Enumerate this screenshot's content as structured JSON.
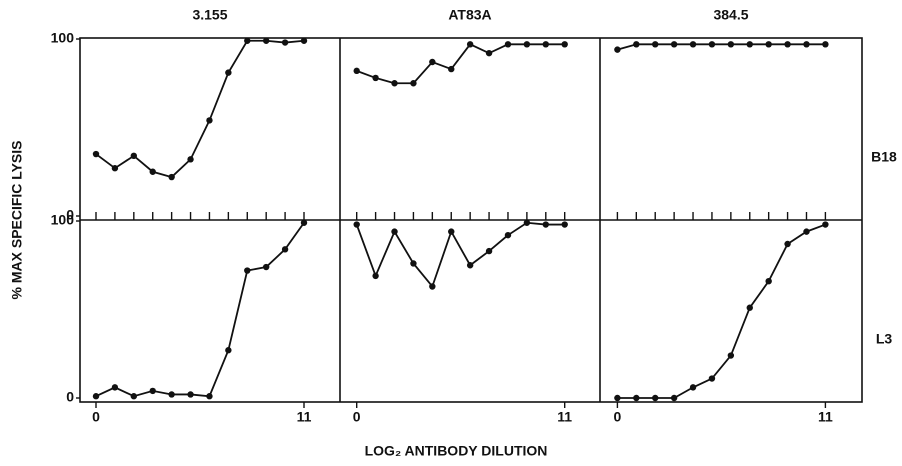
{
  "column_titles": [
    "3.155",
    "AT83A",
    "384.5"
  ],
  "row_labels": [
    "B18",
    "L3"
  ],
  "y_label": "% MAX SPECIFIC LYSIS",
  "x_label": "LOG₂ ANTIBODY DILUTION",
  "chart_data": [
    {
      "type": "line",
      "x": [
        0,
        1,
        2,
        3,
        4,
        5,
        6,
        7,
        8,
        9,
        10,
        11
      ],
      "values": [
        35,
        27,
        34,
        25,
        22,
        32,
        54,
        81,
        99,
        99,
        98,
        99
      ],
      "xlim": [
        0,
        11
      ],
      "ylim": [
        0,
        100
      ],
      "yticks": [
        0,
        100
      ],
      "color": "#111111"
    },
    {
      "type": "line",
      "x": [
        0,
        1,
        2,
        3,
        4,
        5,
        6,
        7,
        8,
        9,
        10,
        11
      ],
      "values": [
        82,
        78,
        75,
        75,
        87,
        83,
        97,
        92,
        97,
        97,
        97,
        97
      ],
      "xlim": [
        0,
        11
      ],
      "ylim": [
        0,
        100
      ],
      "color": "#111111"
    },
    {
      "type": "line",
      "x": [
        0,
        1,
        2,
        3,
        4,
        5,
        6,
        7,
        8,
        9,
        10,
        11
      ],
      "values": [
        94,
        97,
        97,
        97,
        97,
        97,
        97,
        97,
        97,
        97,
        97,
        97
      ],
      "xlim": [
        0,
        11
      ],
      "ylim": [
        0,
        100
      ],
      "color": "#111111"
    },
    {
      "type": "line",
      "x": [
        0,
        1,
        2,
        3,
        4,
        5,
        6,
        7,
        8,
        9,
        10,
        11
      ],
      "values": [
        1,
        6,
        1,
        4,
        2,
        2,
        1,
        27,
        72,
        74,
        84,
        99
      ],
      "xlim": [
        0,
        11
      ],
      "ylim": [
        0,
        100
      ],
      "yticks": [
        0,
        100
      ],
      "xticks": [
        0,
        11
      ],
      "color": "#111111"
    },
    {
      "type": "line",
      "x": [
        0,
        1,
        2,
        3,
        4,
        5,
        6,
        7,
        8,
        9,
        10,
        11
      ],
      "values": [
        98,
        69,
        94,
        76,
        63,
        94,
        75,
        83,
        92,
        99,
        98,
        98
      ],
      "xlim": [
        0,
        11
      ],
      "ylim": [
        0,
        100
      ],
      "xticks": [
        0,
        11
      ],
      "color": "#111111"
    },
    {
      "type": "line",
      "x": [
        0,
        1,
        2,
        3,
        4,
        5,
        6,
        7,
        8,
        9,
        10,
        11
      ],
      "values": [
        0,
        0,
        0,
        0,
        6,
        11,
        24,
        51,
        66,
        87,
        94,
        98
      ],
      "xlim": [
        0,
        11
      ],
      "ylim": [
        0,
        100
      ],
      "xticks": [
        0,
        11
      ],
      "color": "#111111"
    }
  ]
}
